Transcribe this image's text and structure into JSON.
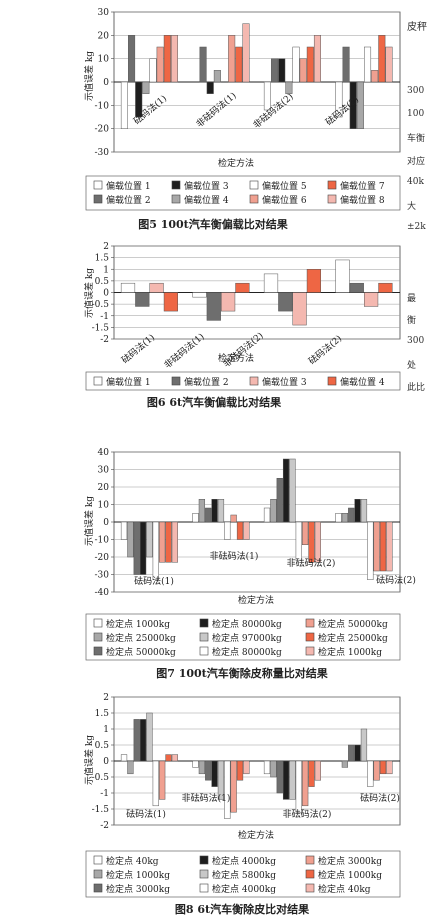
{
  "side_text": [
    "皮秤",
    "300",
    "100",
    "车衡",
    "对应",
    "40k",
    "大",
    "±2k",
    "最",
    "衡",
    "300",
    "处",
    "此比"
  ],
  "charts": [
    {
      "id": "fig5",
      "caption": "图5  100t汽车衡偏载比对结果",
      "ylabel": "示值误差 kg",
      "xlabel": "检定方法",
      "chart_data": {
        "type": "bar",
        "ylim": [
          -30,
          30
        ],
        "yticks": [
          30,
          20,
          10,
          0,
          -10,
          -20,
          -30
        ],
        "categories": [
          "砝码法(1)",
          "非砝码法(1)",
          "非砝码法(2)",
          "砝码法(2)"
        ],
        "series": [
          {
            "name": "偏载位置 1",
            "color": "#ffffff",
            "values": [
              -20,
              0,
              -12,
              -15
            ]
          },
          {
            "name": "偏载位置 2",
            "color": "#6e6e6e",
            "values": [
              20,
              15,
              10,
              15
            ]
          },
          {
            "name": "偏载位置 3",
            "color": "#1e1e1e",
            "values": [
              -15,
              -5,
              10,
              -20
            ]
          },
          {
            "name": "偏载位置 4",
            "color": "#a8a8a8",
            "values": [
              -5,
              5,
              -5,
              -20
            ]
          },
          {
            "name": "偏载位置 5",
            "color": "#ffffff",
            "values": [
              10,
              0,
              15,
              15
            ]
          },
          {
            "name": "偏载位置 6",
            "color": "#f0a090",
            "values": [
              15,
              20,
              10,
              5
            ]
          },
          {
            "name": "偏载位置 7",
            "color": "#ee6644",
            "values": [
              20,
              15,
              15,
              20
            ]
          },
          {
            "name": "偏载位置 8",
            "color": "#f4b8b0",
            "values": [
              20,
              25,
              20,
              15
            ]
          }
        ],
        "legend": {
          "position": "bottom",
          "order": [
            0,
            2,
            4,
            6,
            1,
            3,
            5,
            7
          ]
        }
      }
    },
    {
      "id": "fig6",
      "caption": "图6  6t汽车衡偏载比对结果",
      "ylabel": "示值误差 kg",
      "xlabel": "检定方法",
      "chart_data": {
        "type": "bar",
        "ylim": [
          -2,
          2
        ],
        "yticks": [
          2,
          1.5,
          1,
          0.5,
          0,
          -0.5,
          -1,
          -1.5,
          -2
        ],
        "categories": [
          "砝码法(1)",
          "非砝码法(1)",
          "非砝码法(2)",
          "砝码法(2)"
        ],
        "series": [
          {
            "name": "偏载位置 1",
            "color": "#ffffff",
            "values": [
              0.4,
              -0.2,
              0.8,
              1.4
            ]
          },
          {
            "name": "偏载位置 2",
            "color": "#6e6e6e",
            "values": [
              -0.6,
              -1.2,
              -0.8,
              0.4
            ]
          },
          {
            "name": "偏载位置 3",
            "color": "#f4b8b0",
            "values": [
              0.4,
              -0.8,
              -1.4,
              -0.6
            ]
          },
          {
            "name": "偏载位置 4",
            "color": "#ee6644",
            "values": [
              -0.8,
              0.4,
              1.0,
              0.4
            ]
          }
        ],
        "legend": {
          "position": "bottom",
          "order": [
            0,
            1,
            2,
            3
          ]
        }
      }
    },
    {
      "id": "fig7",
      "caption": "图7  100t汽车衡除皮称量比对结果",
      "ylabel": "示值误差 kg",
      "xlabel": "检定方法",
      "chart_data": {
        "type": "bar",
        "ylim": [
          -40,
          40
        ],
        "yticks": [
          40,
          30,
          20,
          10,
          0,
          -10,
          -20,
          -30,
          -40
        ],
        "categories": [
          "砝码法(1)",
          "非砝码法(1)",
          "非砝码法(2)",
          "砝码法(2)"
        ],
        "series": [
          {
            "name": "检定点 1000kg",
            "color": "#ffffff",
            "values": [
              -10,
              5,
              8,
              5
            ]
          },
          {
            "name": "检定点 25000kg",
            "color": "#a8a8a8",
            "values": [
              -20,
              13,
              13,
              5
            ]
          },
          {
            "name": "检定点 50000kg",
            "color": "#6e6e6e",
            "values": [
              -30,
              8,
              25,
              8
            ]
          },
          {
            "name": "检定点 80000kg",
            "color": "#1e1e1e",
            "values": [
              -30,
              13,
              36,
              13
            ]
          },
          {
            "name": "检定点 97000kg",
            "color": "#c8c8c8",
            "values": [
              -20,
              13,
              36,
              13
            ]
          },
          {
            "name": "检定点 80000kg",
            "color": "#ffffff",
            "values": [
              -33,
              -10,
              -22,
              -33
            ]
          },
          {
            "name": "检定点 50000kg",
            "color": "#f0a090",
            "values": [
              -23,
              4,
              -13,
              -28
            ]
          },
          {
            "name": "检定点 25000kg",
            "color": "#ee6644",
            "values": [
              -23,
              -10,
              -23,
              -28
            ]
          },
          {
            "name": "检定点 1000kg",
            "color": "#f4b8b0",
            "values": [
              -23,
              -10,
              -23,
              -28
            ]
          }
        ],
        "legend": {
          "position": "bottom",
          "order": [
            0,
            3,
            6,
            1,
            4,
            7,
            2,
            5,
            8
          ]
        }
      }
    },
    {
      "id": "fig8",
      "caption": "图8  6t汽车衡除皮比对结果",
      "ylabel": "示值误差 kg",
      "xlabel": "检定方法",
      "chart_data": {
        "type": "bar",
        "ylim": [
          -2,
          2
        ],
        "yticks": [
          2,
          1.5,
          1,
          0.5,
          0,
          -0.5,
          -1,
          -1.5,
          -2
        ],
        "categories": [
          "砝码法(1)",
          "非砝码法(1)",
          "非砝码法(2)",
          "砝码法(2)"
        ],
        "series": [
          {
            "name": "检定点 40kg",
            "color": "#ffffff",
            "values": [
              0.2,
              -0.2,
              -0.4,
              0
            ]
          },
          {
            "name": "检定点 1000kg",
            "color": "#a8a8a8",
            "values": [
              -0.4,
              -0.4,
              -0.5,
              -0.2
            ]
          },
          {
            "name": "检定点 3000kg",
            "color": "#6e6e6e",
            "values": [
              1.3,
              -0.6,
              -1.0,
              0.5
            ]
          },
          {
            "name": "检定点 4000kg",
            "color": "#1e1e1e",
            "values": [
              1.3,
              -0.8,
              -1.2,
              0.5
            ]
          },
          {
            "name": "检定点 5800kg",
            "color": "#c8c8c8",
            "values": [
              1.5,
              -1.2,
              -1.2,
              1.0
            ]
          },
          {
            "name": "检定点 4000kg",
            "color": "#ffffff",
            "values": [
              -1.4,
              -1.8,
              -1.6,
              -0.8
            ]
          },
          {
            "name": "检定点 3000kg",
            "color": "#f0a090",
            "values": [
              -1.2,
              -1.6,
              -1.4,
              -0.6
            ]
          },
          {
            "name": "检定点 1000kg",
            "color": "#ee6644",
            "values": [
              0.2,
              -0.6,
              -0.8,
              -0.4
            ]
          },
          {
            "name": "检定点 40kg",
            "color": "#f4b8b0",
            "values": [
              0.2,
              -0.4,
              -0.6,
              -0.4
            ]
          }
        ],
        "legend": {
          "position": "bottom",
          "order": [
            0,
            3,
            6,
            1,
            4,
            7,
            2,
            5,
            8
          ]
        }
      }
    }
  ]
}
